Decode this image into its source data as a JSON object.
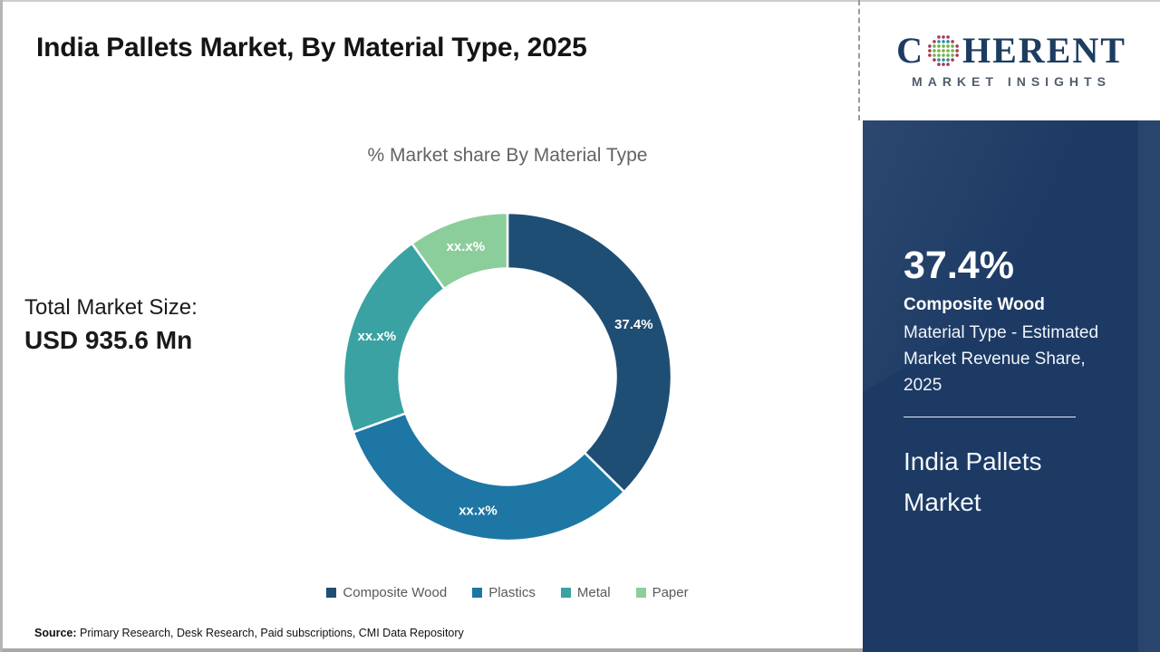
{
  "header": {
    "title": "India Pallets Market, By Material Type, 2025"
  },
  "logo": {
    "brand_prefix": "C",
    "brand_suffix": "HERENT",
    "tagline": "MARKET INSIGHTS",
    "text_color": "#1c3c60",
    "globe_colors": {
      "outer": "#a23b5c",
      "mid_band": "#76b14b",
      "inner": "#2f8fa0"
    }
  },
  "left_panel": {
    "total_label": "Total Market Size:",
    "total_value": "USD 935.6 Mn"
  },
  "chart_data": {
    "type": "donut",
    "title": "% Market share By Material Type",
    "categories": [
      "Composite Wood",
      "Plastics",
      "Metal",
      "Paper"
    ],
    "values": [
      37.4,
      32.1,
      20.6,
      9.9
    ],
    "displayed_labels": [
      "37.4%",
      "xx.x%",
      "xx.x%",
      "xx.x%"
    ],
    "colors": [
      "#1f4e74",
      "#1e76a4",
      "#3aa2a2",
      "#8bce9b"
    ],
    "start_angle_deg": 0,
    "inner_radius_ratio": 0.66,
    "legend_position": "bottom",
    "label_text_color": "#ffffff"
  },
  "sidebar": {
    "highlight_value": "37.4%",
    "highlight_title": "Composite Wood",
    "highlight_desc": "Material Type - Estimated Market Revenue Share, 2025",
    "report_name": "India Pallets Market",
    "bg_color": "#1c3a64"
  },
  "footer": {
    "source_label": "Source:",
    "source_text": "Primary Research, Desk Research, Paid subscriptions, CMI Data Repository"
  }
}
